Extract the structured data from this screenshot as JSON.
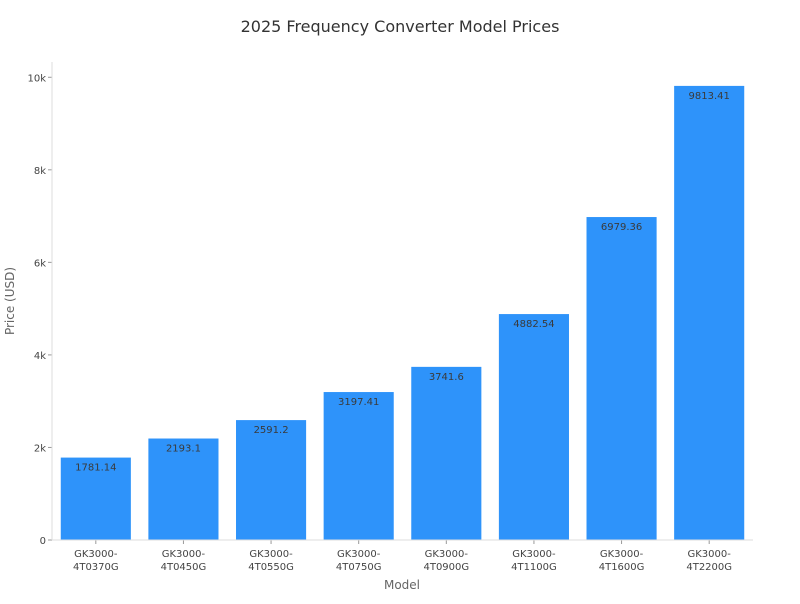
{
  "chart_data": {
    "type": "bar",
    "title": "2025 Frequency Converter Model Prices",
    "xlabel": "Model",
    "ylabel": "Price (USD)",
    "categories": [
      [
        "GK3000-",
        "4T0370G"
      ],
      [
        "GK3000-",
        "4T0450G"
      ],
      [
        "GK3000-",
        "4T0550G"
      ],
      [
        "GK3000-",
        "4T0750G"
      ],
      [
        "GK3000-",
        "4T0900G"
      ],
      [
        "GK3000-",
        "4T1100G"
      ],
      [
        "GK3000-",
        "4T1600G"
      ],
      [
        "GK3000-",
        "4T2200G"
      ]
    ],
    "values": [
      1781.14,
      2193.1,
      2591.2,
      3197.41,
      3741.6,
      4882.54,
      6979.36,
      9813.41
    ],
    "data_labels": [
      "1781.14",
      "2193.1",
      "2591.2",
      "3197.41",
      "3741.6",
      "4882.54",
      "6979.36",
      "9813.41"
    ],
    "yticks": [
      0,
      2000,
      4000,
      6000,
      8000,
      10000
    ],
    "ytick_labels": [
      "0",
      "2k",
      "4k",
      "6k",
      "8k",
      "10k"
    ],
    "ylim": [
      0,
      10330
    ],
    "grid": false,
    "bar_color": "#2e93fa",
    "label_color": "#3a3a3a"
  }
}
